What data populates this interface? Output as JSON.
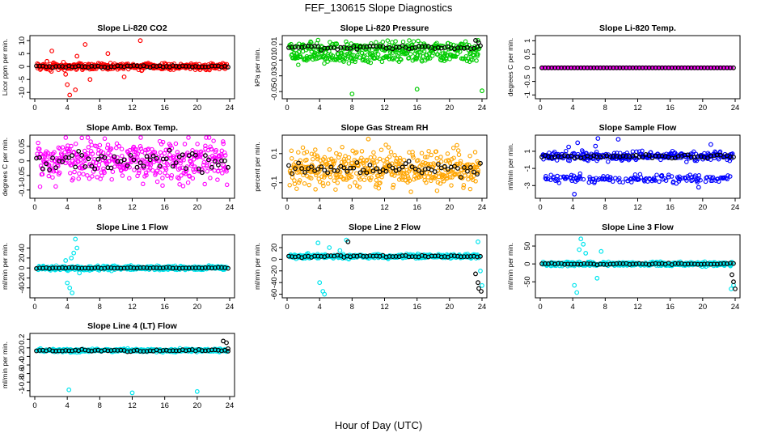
{
  "title": "FEF_130615  Slope Diagnostics",
  "xlabel": "Hour of Day (UTC)",
  "chart_data": [
    {
      "type": "scatter",
      "title": "Slope Li-820 CO2",
      "ylabel": "Licor ppm per min.",
      "color": "#ff0000",
      "xlim": [
        0,
        24
      ],
      "ylim": [
        -11.5,
        11
      ],
      "xticks": [
        0,
        4,
        8,
        12,
        16,
        20,
        24
      ],
      "yticks": [
        -10,
        -5,
        0,
        5,
        10
      ],
      "spread": 1.8,
      "black_spread": 0.5,
      "series": [
        {
          "name": "",
          "x": [
            1.5,
            2.1,
            3.8,
            4.0,
            4.3,
            5.0,
            5.2,
            6.2,
            6.8,
            9.0,
            11.0,
            13.0
          ],
          "y": [
            2.0,
            6.0,
            -3.0,
            -7.0,
            -11.0,
            -9.0,
            4.0,
            8.5,
            -5.0,
            5.0,
            -4.0,
            10.0
          ]
        },
        {
          "name": "",
          "x": [],
          "y": []
        }
      ]
    },
    {
      "type": "scatter",
      "title": "Slope Li-820 Pressure",
      "ylabel": "kPa per min.",
      "color": "#00cc00",
      "xlim": [
        0,
        24
      ],
      "ylim": [
        -0.056,
        0.018
      ],
      "xticks": [
        0,
        4,
        8,
        12,
        16,
        20,
        24
      ],
      "yticks": [
        -0.05,
        -0.03,
        -0.01,
        0.01
      ],
      "spread": 0.01,
      "black_spread": 0.004,
      "series": [
        {
          "name": "",
          "x": [
            8.0,
            16.0,
            24.0,
            23.5
          ],
          "y": [
            -0.053,
            -0.047,
            -0.049,
            0.015
          ]
        },
        {
          "name": "",
          "x": [
            23.2,
            23.6
          ],
          "y": [
            0.015,
            0.012
          ]
        }
      ]
    },
    {
      "type": "scatter",
      "title": "Slope Li-820 Temp.",
      "ylabel": "degrees C per min.",
      "color": "#ff00ff",
      "xlim": [
        0,
        24
      ],
      "ylim": [
        -1.05,
        1.1
      ],
      "xticks": [
        0,
        4,
        8,
        12,
        16,
        20,
        24
      ],
      "yticks": [
        -1.0,
        -0.5,
        0.0,
        0.5,
        1.0
      ],
      "spread": 0.0,
      "black_spread": 0.0,
      "series": [
        {
          "name": "",
          "x": [],
          "y": []
        },
        {
          "name": "",
          "x": [],
          "y": []
        }
      ]
    },
    {
      "type": "scatter",
      "title": "Slope Amb. Box Temp.",
      "ylabel": "degrees C per min.",
      "color": "#ff00ff",
      "xlim": [
        0,
        24
      ],
      "ylim": [
        -0.12,
        0.08
      ],
      "xticks": [
        0,
        4,
        8,
        12,
        16,
        20,
        24
      ],
      "yticks": [
        -0.1,
        -0.05,
        0.0,
        0.05
      ],
      "spread": 0.1,
      "black_spread": 0.05,
      "series": [
        {
          "name": "",
          "x": [],
          "y": []
        },
        {
          "name": "",
          "x": [],
          "y": []
        }
      ]
    },
    {
      "type": "scatter",
      "title": "Slope Gas Stream RH",
      "ylabel": "percent per min.",
      "color": "#ffa500",
      "xlim": [
        0,
        24
      ],
      "ylim": [
        -0.19,
        0.21
      ],
      "xticks": [
        0,
        4,
        8,
        12,
        16,
        20,
        24
      ],
      "yticks": [
        -0.1,
        0.1
      ],
      "spread": 0.17,
      "black_spread": 0.06,
      "series": [
        {
          "name": "",
          "x": [
            10.0
          ],
          "y": [
            0.2
          ]
        },
        {
          "name": "",
          "x": [],
          "y": []
        }
      ]
    },
    {
      "type": "scatter",
      "title": "Slope Sample Flow",
      "ylabel": "ml/min per min.",
      "color": "#0000ff",
      "xlim": [
        0,
        24
      ],
      "ylim": [
        -4.2,
        2.6
      ],
      "xticks": [
        0,
        4,
        8,
        12,
        16,
        20,
        24
      ],
      "yticks": [
        -3,
        -1,
        1
      ],
      "spread": 0.7,
      "black_spread": 0.3,
      "series": [
        {
          "name": "",
          "x": [
            4.2,
            4.6,
            6.8,
            7.1,
            9.6,
            15.8,
            19.5,
            21.0,
            3.5
          ],
          "y": [
            -4.0,
            2.0,
            1.6,
            2.5,
            2.4,
            -2.0,
            -3.2,
            1.8,
            1.5
          ]
        },
        {
          "name": "",
          "x": [],
          "y": []
        }
      ]
    },
    {
      "type": "scatter",
      "title": "Slope Line 1 Flow",
      "ylabel": "ml/min per min.",
      "color": "#00e5ee",
      "xlim": [
        0,
        24
      ],
      "ylim": [
        -55,
        62
      ],
      "xticks": [
        0,
        4,
        8,
        12,
        16,
        20,
        24
      ],
      "yticks": [
        -40,
        -20,
        0,
        20,
        40
      ],
      "spread": 6,
      "black_spread": 1.5,
      "series": [
        {
          "name": "",
          "x": [
            4.0,
            4.3,
            4.6,
            4.8,
            5.0,
            5.2,
            4.5,
            5.5,
            3.8
          ],
          "y": [
            -30,
            -40,
            -50,
            30,
            58,
            40,
            20,
            -10,
            15
          ]
        },
        {
          "name": "",
          "x": [],
          "y": []
        }
      ]
    },
    {
      "type": "scatter",
      "title": "Slope Line 2 Flow",
      "ylabel": "ml/min per min.",
      "color": "#00e5ee",
      "xlim": [
        0,
        24
      ],
      "ylim": [
        -62,
        38
      ],
      "xticks": [
        0,
        4,
        8,
        12,
        16,
        20,
        24
      ],
      "yticks": [
        -60,
        -40,
        -20,
        0,
        20
      ],
      "spread": 5,
      "black_spread": 3,
      "series": [
        {
          "name": "",
          "x": [
            4.0,
            4.4,
            4.6,
            3.8,
            5.2,
            6.5,
            7.3,
            23.5,
            23.8,
            24.0
          ],
          "y": [
            -40,
            -55,
            -60,
            28,
            20,
            15,
            33,
            30,
            -20,
            -45
          ]
        },
        {
          "name": "",
          "x": [
            23.2,
            23.5,
            23.6,
            23.9,
            7.5
          ],
          "y": [
            -25,
            -40,
            -50,
            -55,
            30
          ]
        }
      ]
    },
    {
      "type": "scatter",
      "title": "Slope Line 3 Flow",
      "ylabel": "ml/min per min.",
      "color": "#00e5ee",
      "xlim": [
        0,
        24
      ],
      "ylim": [
        -88,
        75
      ],
      "xticks": [
        0,
        4,
        8,
        12,
        16,
        20,
        24
      ],
      "yticks": [
        -50,
        0,
        50
      ],
      "spread": 8,
      "black_spread": 3,
      "series": [
        {
          "name": "",
          "x": [
            4.2,
            4.5,
            4.8,
            5.0,
            5.3,
            5.6,
            7.0,
            7.5,
            23.5,
            23.8
          ],
          "y": [
            -60,
            -80,
            40,
            70,
            55,
            30,
            -40,
            35,
            -70,
            -60
          ]
        },
        {
          "name": "",
          "x": [
            23.6,
            23.8,
            24.0
          ],
          "y": [
            -30,
            -50,
            -70
          ]
        }
      ]
    },
    {
      "type": "scatter",
      "title": "Slope Line 4 (LT) Flow",
      "ylabel": "ml/min per min.",
      "color": "#00e5ee",
      "xlim": [
        0,
        24
      ],
      "ylim": [
        -1.08,
        0.28
      ],
      "xticks": [
        0,
        4,
        8,
        12,
        16,
        20,
        24
      ],
      "yticks": [
        -1.0,
        -0.8,
        -0.6,
        -0.4,
        -0.2,
        0.0,
        0.2
      ],
      "spread": 0.05,
      "black_spread": 0.04,
      "series": [
        {
          "name": "",
          "x": [
            4.2,
            12.0,
            20.0
          ],
          "y": [
            -0.98,
            -1.05,
            -1.02
          ]
        },
        {
          "name": "",
          "x": [
            23.2,
            23.6,
            23.8
          ],
          "y": [
            0.16,
            0.12,
            -0.02
          ]
        }
      ]
    }
  ]
}
